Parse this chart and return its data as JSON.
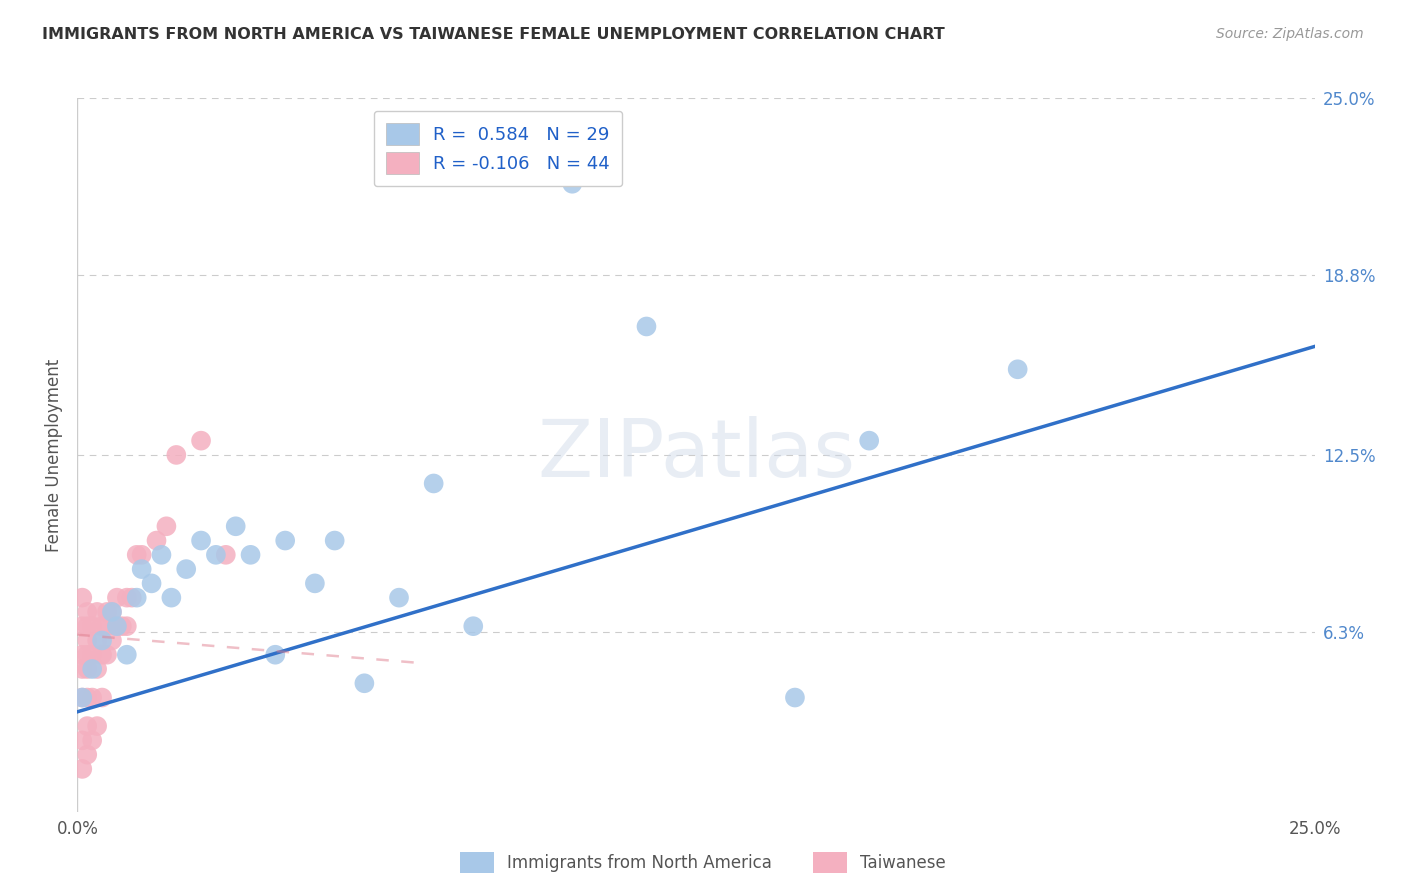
{
  "title": "IMMIGRANTS FROM NORTH AMERICA VS TAIWANESE FEMALE UNEMPLOYMENT CORRELATION CHART",
  "source": "Source: ZipAtlas.com",
  "ylabel": "Female Unemployment",
  "xlim": [
    0.0,
    0.25
  ],
  "ylim": [
    0.0,
    0.25
  ],
  "ytick_labels": [
    "6.3%",
    "12.5%",
    "18.8%",
    "25.0%"
  ],
  "ytick_positions": [
    0.063,
    0.125,
    0.188,
    0.25
  ],
  "watermark": "ZIPatlas",
  "blue_R": 0.584,
  "blue_N": 29,
  "pink_R": -0.106,
  "pink_N": 44,
  "blue_color": "#a8c8e8",
  "pink_color": "#f4b0c0",
  "blue_line_color": "#3070c8",
  "pink_line_color": "#e08090",
  "legend_label_blue": "Immigrants from North America",
  "legend_label_pink": "Taiwanese",
  "blue_points_x": [
    0.001,
    0.003,
    0.005,
    0.007,
    0.008,
    0.01,
    0.012,
    0.013,
    0.015,
    0.017,
    0.019,
    0.022,
    0.025,
    0.028,
    0.032,
    0.035,
    0.04,
    0.042,
    0.048,
    0.052,
    0.058,
    0.065,
    0.072,
    0.08,
    0.1,
    0.115,
    0.145,
    0.16,
    0.19
  ],
  "blue_points_y": [
    0.04,
    0.05,
    0.06,
    0.07,
    0.065,
    0.055,
    0.075,
    0.085,
    0.08,
    0.09,
    0.075,
    0.085,
    0.095,
    0.09,
    0.1,
    0.09,
    0.055,
    0.095,
    0.08,
    0.095,
    0.045,
    0.075,
    0.115,
    0.065,
    0.22,
    0.17,
    0.04,
    0.13,
    0.155
  ],
  "pink_points_x": [
    0.001,
    0.001,
    0.001,
    0.001,
    0.001,
    0.001,
    0.001,
    0.002,
    0.002,
    0.002,
    0.002,
    0.002,
    0.002,
    0.002,
    0.002,
    0.003,
    0.003,
    0.003,
    0.003,
    0.004,
    0.004,
    0.004,
    0.004,
    0.005,
    0.005,
    0.005,
    0.006,
    0.006,
    0.006,
    0.007,
    0.007,
    0.008,
    0.008,
    0.009,
    0.01,
    0.01,
    0.011,
    0.012,
    0.013,
    0.016,
    0.018,
    0.02,
    0.025,
    0.03
  ],
  "pink_points_y": [
    0.015,
    0.025,
    0.04,
    0.05,
    0.055,
    0.065,
    0.075,
    0.02,
    0.03,
    0.04,
    0.05,
    0.055,
    0.06,
    0.065,
    0.07,
    0.025,
    0.04,
    0.055,
    0.065,
    0.03,
    0.05,
    0.06,
    0.07,
    0.04,
    0.055,
    0.065,
    0.055,
    0.065,
    0.07,
    0.06,
    0.07,
    0.065,
    0.075,
    0.065,
    0.065,
    0.075,
    0.075,
    0.09,
    0.09,
    0.095,
    0.1,
    0.125,
    0.13,
    0.09
  ],
  "blue_line_x0": 0.0,
  "blue_line_x1": 0.25,
  "blue_line_y0": 0.035,
  "blue_line_y1": 0.163,
  "pink_line_x0": 0.0,
  "pink_line_x1": 0.07,
  "pink_line_y0": 0.062,
  "pink_line_y1": 0.052
}
